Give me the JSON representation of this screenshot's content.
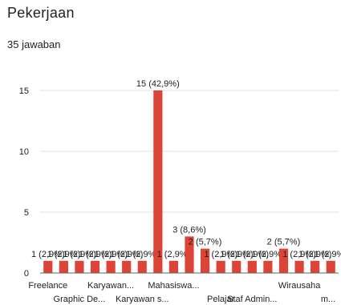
{
  "form": {
    "title": "Pekerjaan",
    "responses": "35 jawaban"
  },
  "colors": {
    "bar": "#db4437",
    "grid": "#e0e0e0",
    "axis": "#616161",
    "text": "#202124"
  },
  "chart_data": {
    "type": "bar",
    "ylim": [
      0,
      15
    ],
    "yticks": [
      0,
      5,
      10,
      15
    ],
    "grid": true,
    "categories": [
      "Freelance",
      "",
      "Graphic De...",
      "",
      "Karyawan...",
      "",
      "Karyawan s...",
      "",
      "Mahasiswa...",
      "",
      "",
      "Pelajar",
      "",
      "Staf Admin...",
      "",
      "",
      "Wirausaha",
      "",
      "m..."
    ],
    "values": [
      1,
      1,
      1,
      1,
      1,
      1,
      1,
      15,
      1,
      3,
      2,
      1,
      1,
      1,
      1,
      2,
      1,
      1,
      1
    ],
    "data_labels": [
      "1 (2,9%)",
      "1 (2,9%)",
      "1 (2,9%)",
      "1 (2,9%)",
      "1 (2,9%)",
      "1 (2,9%)",
      "1 (2,9%)",
      "15 (42,9%)",
      "1 (2,9%)",
      "3 (8,6%)",
      "2 (5,7%)",
      "1 (2,9%)",
      "1 (2,9%)",
      "1 (2,9%)",
      "1 (2,9%)",
      "2 (5,7%)",
      "1 (2,9%)",
      "1 (2,9%)",
      "1 (2,9%)"
    ]
  }
}
